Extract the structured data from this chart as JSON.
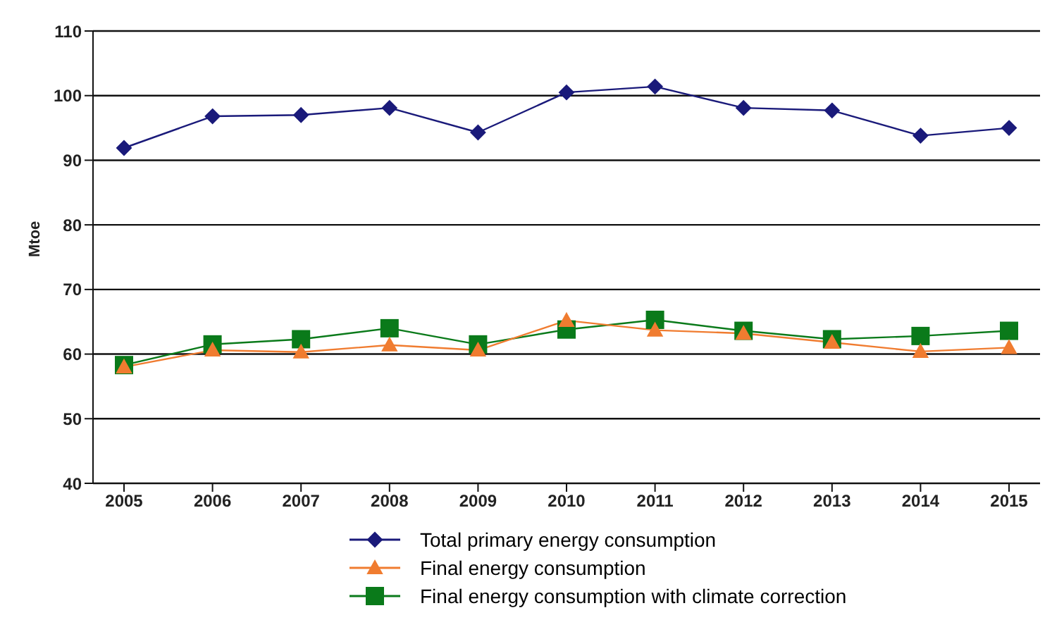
{
  "chart_data": {
    "type": "line",
    "ylabel": "Mtoe",
    "categories": [
      "2005",
      "2006",
      "2007",
      "2008",
      "2009",
      "2010",
      "2011",
      "2012",
      "2013",
      "2014",
      "2015"
    ],
    "series": [
      {
        "name": "Total primary energy consumption",
        "color": "#1a1a7a",
        "marker": "diamond",
        "values": [
          91.9,
          96.8,
          97.0,
          98.1,
          94.3,
          100.5,
          101.4,
          98.1,
          97.7,
          93.8,
          95.0
        ]
      },
      {
        "name": "Final energy consumption",
        "color": "#f07c30",
        "marker": "triangle",
        "values": [
          58.0,
          60.6,
          60.3,
          61.4,
          60.6,
          65.2,
          63.7,
          63.2,
          61.8,
          60.4,
          61.0
        ]
      },
      {
        "name": "Final energy consumption with climate correction",
        "color": "#0a7a1a",
        "marker": "square",
        "values": [
          58.3,
          61.5,
          62.3,
          64.0,
          61.5,
          63.8,
          65.3,
          63.6,
          62.3,
          62.8,
          63.6
        ]
      }
    ],
    "ylim": [
      40,
      110
    ],
    "yticks": [
      40,
      50,
      60,
      70,
      80,
      90,
      100,
      110
    ],
    "grid": "y",
    "legend": "bottom"
  }
}
